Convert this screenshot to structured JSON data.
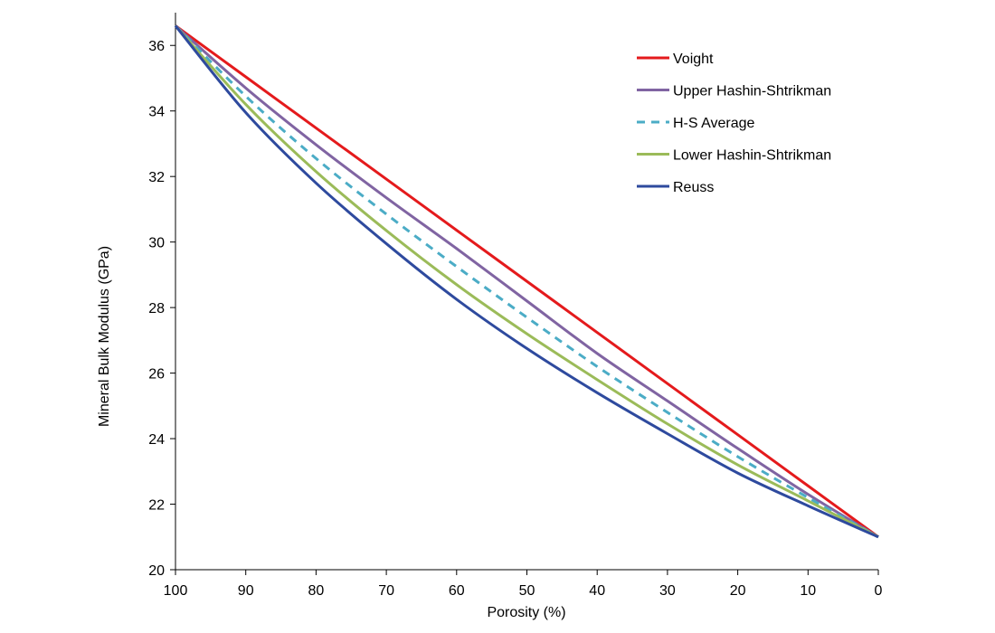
{
  "chart_data": {
    "type": "line",
    "title": "",
    "xlabel": "Porosity (%)",
    "ylabel": "Mineral Bulk Modulus (GPa)",
    "xlim": [
      100,
      0
    ],
    "ylim": [
      20,
      37
    ],
    "x_ticks": [
      100,
      90,
      80,
      70,
      60,
      50,
      40,
      30,
      20,
      10,
      0
    ],
    "y_ticks": [
      20,
      22,
      24,
      26,
      28,
      30,
      32,
      34,
      36
    ],
    "grid": false,
    "legend_position": "top-right",
    "x": [
      100,
      90,
      80,
      70,
      60,
      50,
      40,
      30,
      20,
      10,
      0
    ],
    "series": [
      {
        "name": "Voight",
        "color": "#e41a1c",
        "dash": "solid",
        "values": [
          36.6,
          35.04,
          33.48,
          31.92,
          30.36,
          28.8,
          27.24,
          25.68,
          24.12,
          22.56,
          21.0
        ]
      },
      {
        "name": "Upper Hashin-Shtrikman",
        "color": "#8064a2",
        "dash": "solid",
        "values": [
          36.6,
          34.7,
          32.97,
          31.35,
          29.8,
          28.2,
          26.6,
          25.15,
          23.7,
          22.3,
          21.0
        ]
      },
      {
        "name": "H-S Average",
        "color": "#4bacc6",
        "dash": "dashed",
        "values": [
          36.6,
          34.45,
          32.55,
          30.85,
          29.25,
          27.7,
          26.2,
          24.8,
          23.45,
          22.2,
          21.0
        ]
      },
      {
        "name": "Lower Hashin-Shtrikman",
        "color": "#9bbb59",
        "dash": "solid",
        "values": [
          36.6,
          34.2,
          32.15,
          30.35,
          28.7,
          27.2,
          25.8,
          24.45,
          23.2,
          22.1,
          21.0
        ]
      },
      {
        "name": "Reuss",
        "color": "#2e4a9e",
        "dash": "solid",
        "values": [
          36.6,
          33.95,
          31.8,
          29.95,
          28.25,
          26.75,
          25.4,
          24.15,
          22.95,
          21.95,
          21.0
        ]
      }
    ]
  }
}
